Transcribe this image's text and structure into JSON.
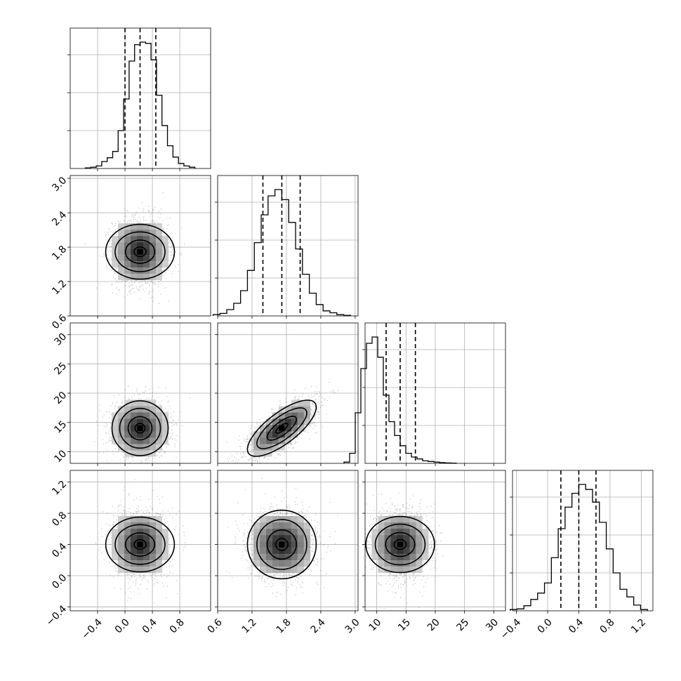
{
  "chart_data": {
    "type": "corner",
    "title": "",
    "variables": [
      {
        "label": "",
        "range": [
          -0.8,
          1.25
        ],
        "ticks": [
          -0.4,
          0.0,
          0.4,
          0.8
        ],
        "tick_labels": [
          "−0.4",
          "0.0",
          "0.4",
          "0.8"
        ],
        "mean": 0.22,
        "sd": 0.2,
        "quantiles": [
          0.0,
          0.22,
          0.45
        ]
      },
      {
        "label": "",
        "range": [
          0.6,
          3.05
        ],
        "ticks": [
          0.6,
          1.2,
          1.8,
          2.4,
          3.0
        ],
        "tick_labels": [
          "0.6",
          "1.2",
          "1.8",
          "2.4",
          "3.0"
        ],
        "mean": 1.72,
        "sd": 0.3,
        "quantiles": [
          1.39,
          1.72,
          2.04
        ]
      },
      {
        "label": "",
        "range": [
          8,
          32
        ],
        "ticks": [
          10,
          15,
          20,
          25,
          30
        ],
        "tick_labels": [
          "10",
          "15",
          "20",
          "25",
          "30"
        ],
        "mean": 14.0,
        "sd": 2.4,
        "quantiles": [
          11.6,
          14.0,
          16.6
        ]
      },
      {
        "label": "",
        "range": [
          -0.45,
          1.35
        ],
        "ticks": [
          -0.4,
          0.0,
          0.4,
          0.8,
          1.2
        ],
        "tick_labels": [
          "−0.4",
          "0.0",
          "0.4",
          "0.8",
          "1.2"
        ],
        "mean": 0.4,
        "sd": 0.22,
        "quantiles": [
          0.17,
          0.4,
          0.62
        ]
      }
    ],
    "correlations": {
      "1-0": 0.0,
      "2-0": 0.0,
      "2-1": 0.75,
      "3-0": 0.0,
      "3-1": 0.0,
      "3-2": 0.0
    },
    "histograms": {
      "0": [
        0.5,
        1.0,
        2.0,
        5.5,
        8.5,
        13.5,
        30.0,
        55.0,
        85.0,
        98.0,
        100.0,
        99.0,
        86.0,
        58.0,
        34.0,
        18.0,
        9.0,
        4.0,
        2.0,
        1.0
      ],
      "1": [
        1.0,
        2.0,
        5.0,
        10.0,
        20.0,
        36.0,
        58.0,
        80.0,
        95.0,
        100.0,
        92.0,
        74.0,
        53.0,
        33.0,
        18.0,
        9.0,
        4.0,
        2.5,
        1.0,
        0.5
      ],
      "2": [
        1.0,
        8.0,
        40.0,
        75.0,
        95.0,
        100.0,
        84.0,
        54.0,
        33.0,
        22.0,
        14.0,
        8.0,
        5.0,
        3.5,
        2.0,
        1.5,
        1.0,
        0.6,
        0.3,
        0.2
      ],
      "3": [
        1.0,
        1.5,
        4.0,
        9.0,
        14.0,
        22.0,
        42.0,
        65.0,
        82.0,
        93.0,
        100.0,
        96.0,
        86.0,
        70.0,
        49.0,
        30.0,
        17.0,
        11.0,
        4.5,
        1.0
      ]
    },
    "grid": true,
    "contours": true,
    "colors": {
      "axes": "#000000",
      "grid": "#b0b0b0",
      "points": "#000000"
    }
  }
}
